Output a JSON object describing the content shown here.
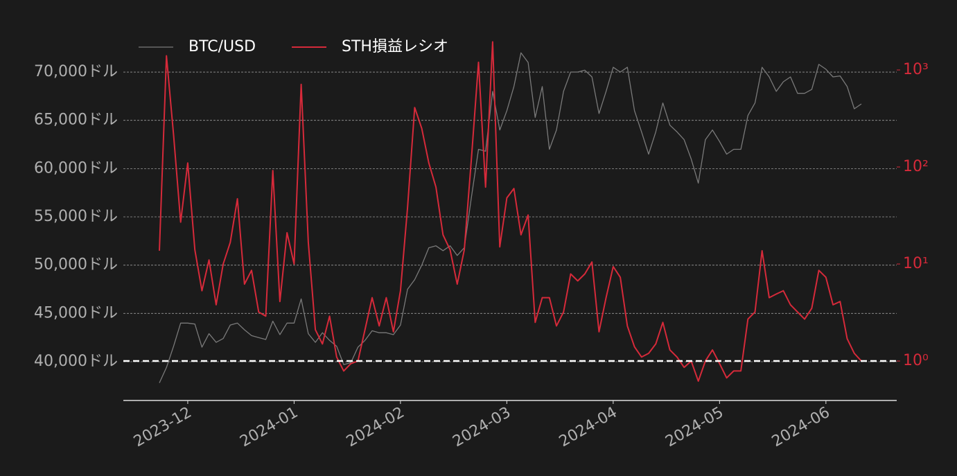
{
  "chart_data": {
    "type": "line",
    "categories": [
      null,
      null,
      null,
      null,
      "2023-12",
      null,
      null,
      null,
      null,
      null,
      null,
      null,
      null,
      null,
      null,
      null,
      null,
      null,
      null,
      "2024-01",
      null,
      null,
      null,
      null,
      null,
      null,
      null,
      null,
      null,
      null,
      null,
      null,
      null,
      null,
      "2024-02",
      null,
      null,
      null,
      null,
      null,
      null,
      null,
      null,
      null,
      null,
      null,
      null,
      null,
      null,
      "2024-03",
      null,
      null,
      null,
      null,
      null,
      null,
      null,
      null,
      null,
      null,
      null,
      null,
      null,
      null,
      "2024-04",
      null,
      null,
      null,
      null,
      null,
      null,
      null,
      null,
      null,
      null,
      null,
      null,
      null,
      null,
      "2024-05",
      null,
      null,
      null,
      null,
      null,
      null,
      null,
      null,
      null,
      null,
      null,
      null,
      null,
      null,
      "2024-06",
      null,
      null,
      null,
      null,
      null
    ],
    "series": [
      {
        "name": "BTC/USD",
        "color": "#7a7a7a",
        "axis": "y",
        "values": [
          37800,
          39400,
          41600,
          44000,
          44000,
          43900,
          41500,
          42900,
          42000,
          42400,
          43800,
          44000,
          43300,
          42700,
          42500,
          42300,
          44200,
          42800,
          44000,
          44000,
          46500,
          42900,
          42000,
          43000,
          42200,
          41600,
          39700,
          39900,
          41500,
          42200,
          43200,
          43000,
          43000,
          42800,
          43800,
          47500,
          48500,
          50000,
          51800,
          52000,
          51500,
          52000,
          51000,
          51800,
          57000,
          62000,
          61800,
          68000,
          64000,
          66000,
          68500,
          72000,
          71000,
          65300,
          68500,
          62000,
          64000,
          68000,
          70000,
          70000,
          70200,
          69500,
          65700,
          68000,
          70500,
          70000,
          70500,
          66000,
          63800,
          61500,
          63800,
          66800,
          64500,
          63800,
          63000,
          61000,
          58500,
          63000,
          64000,
          62800,
          61500,
          62000,
          62000,
          65500,
          66800,
          70500,
          69500,
          68000,
          69000,
          69500,
          67800,
          67800,
          68200,
          70800,
          70300,
          69500,
          69600,
          68500,
          66200,
          66700
        ]
      },
      {
        "name": "STH損益レシオ",
        "color": "#d62a3a",
        "axis": "y2",
        "values": [
          13.7,
          1400,
          213,
          27,
          110,
          14,
          5.3,
          11,
          3.8,
          10,
          16.7,
          47,
          6.2,
          8.6,
          3.2,
          2.9,
          92,
          4.1,
          21,
          10,
          710,
          16.7,
          2.1,
          1.5,
          2.9,
          1.1,
          0.79,
          0.94,
          1.0,
          2.1,
          4.5,
          2.3,
          4.5,
          2.0,
          5.3,
          38,
          410,
          250,
          110,
          62,
          20,
          14,
          6.2,
          14,
          120,
          1200,
          62,
          1950,
          15,
          48,
          60,
          20,
          32,
          2.5,
          4.5,
          4.5,
          2.3,
          3.2,
          7.9,
          6.7,
          7.9,
          10.5,
          2.0,
          4.5,
          9.4,
          7.3,
          2.3,
          1.4,
          1.1,
          1.2,
          1.5,
          2.5,
          1.3,
          1.1,
          0.86,
          1.0,
          0.62,
          1.0,
          1.3,
          0.94,
          0.67,
          0.79,
          0.79,
          2.7,
          3.2,
          13.7,
          4.5,
          4.9,
          5.3,
          3.8,
          3.2,
          2.7,
          3.5,
          8.6,
          7.3,
          3.8,
          4.1,
          1.7,
          1.2,
          1.0
        ]
      }
    ],
    "ylim": [
      35980,
      73520
    ],
    "yticks": [
      {
        "value": 40000,
        "label": "40,000ドル"
      },
      {
        "value": 45000,
        "label": "45,000ドル"
      },
      {
        "value": 50000,
        "label": "50,000ドル"
      },
      {
        "value": 55000,
        "label": "55,000ドル"
      },
      {
        "value": 60000,
        "label": "60,000ドル"
      },
      {
        "value": 65000,
        "label": "65,000ドル"
      },
      {
        "value": 70000,
        "label": "70,000ドル"
      }
    ],
    "y2lim": [
      0.392,
      2130
    ],
    "y2scale": "log",
    "y2ticks": [
      {
        "value": 1,
        "label": "10⁰"
      },
      {
        "value": 10,
        "label": "10¹"
      },
      {
        "value": 100,
        "label": "10²"
      },
      {
        "value": 1000,
        "label": "10³"
      }
    ],
    "y2tick_color": "#d62a3a",
    "reference_line": {
      "value": 1,
      "axis": "y2",
      "color": "#ffffff"
    },
    "grid": true,
    "legend": "top-left"
  }
}
